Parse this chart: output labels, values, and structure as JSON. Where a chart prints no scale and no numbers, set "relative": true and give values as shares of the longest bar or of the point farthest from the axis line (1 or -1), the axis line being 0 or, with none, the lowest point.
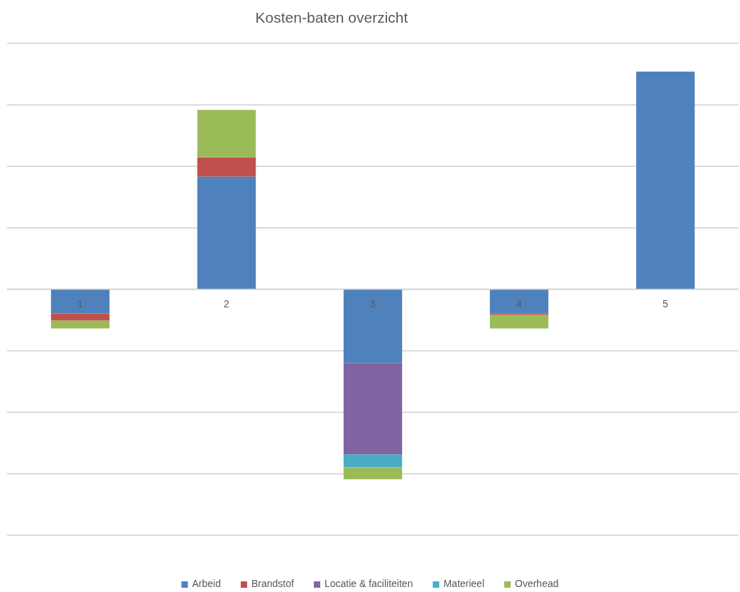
{
  "chart_data": {
    "type": "bar",
    "title": "Kosten-baten overzicht",
    "categories": [
      "1",
      "2",
      "3",
      "4",
      "5"
    ],
    "stacked": true,
    "relative": true,
    "grid": true,
    "legend": "bottom",
    "series": [
      {
        "name": "Arbeid",
        "color": "#4f81bd",
        "values": [
          -0.111,
          0.518,
          -0.339,
          -0.111,
          1
        ]
      },
      {
        "name": "Brandstof",
        "color": "#c0504d",
        "values": [
          -0.033,
          0.088,
          null,
          -0.007,
          null
        ]
      },
      {
        "name": "Locatie & faciliteiten",
        "color": "#8064a2",
        "values": [
          null,
          null,
          -0.42,
          null,
          null
        ]
      },
      {
        "name": "Materieel",
        "color": "#4bacc6",
        "values": [
          null,
          null,
          -0.059,
          null,
          null
        ]
      },
      {
        "name": "Overhead",
        "color": "#9bbb59",
        "values": [
          -0.036,
          0.218,
          -0.055,
          -0.062,
          null
        ]
      }
    ]
  }
}
